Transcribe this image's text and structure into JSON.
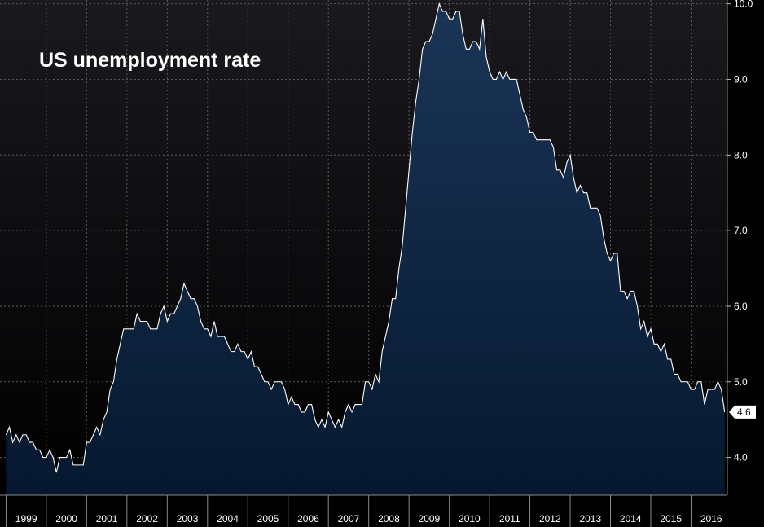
{
  "chart_data": {
    "type": "area",
    "title": "US unemployment rate",
    "xlabel": "",
    "ylabel": "",
    "x_range": [
      1998.85,
      2016.9
    ],
    "ylim": [
      3.5,
      10.05
    ],
    "y_ticks": [
      4.0,
      5.0,
      6.0,
      7.0,
      8.0,
      9.0,
      10.0
    ],
    "y_tick_labels": [
      "4.0",
      "5.0",
      "6.0",
      "7.0",
      "8.0",
      "9.0",
      "10.0"
    ],
    "x_tick_labels": [
      "1999",
      "2000",
      "2001",
      "2002",
      "2003",
      "2004",
      "2005",
      "2006",
      "2007",
      "2008",
      "2009",
      "2010",
      "2011",
      "2012",
      "2013",
      "2014",
      "2015",
      "2016"
    ],
    "grid": true,
    "last_value_label": "4.6",
    "colors": {
      "background_top": "#1a191e",
      "background_bottom": "#000000",
      "area_top": "#1b3557",
      "area_bottom": "#05182f",
      "line": "#ffffff",
      "grid": "#5a5a5a"
    },
    "series": [
      {
        "start_year": 1999,
        "start_month": 1,
        "frequency": "monthly",
        "values": [
          4.3,
          4.4,
          4.2,
          4.3,
          4.2,
          4.3,
          4.3,
          4.2,
          4.2,
          4.1,
          4.1,
          4.0,
          4.0,
          4.1,
          4.0,
          3.8,
          4.0,
          4.0,
          4.0,
          4.1,
          3.9,
          3.9,
          3.9,
          3.9,
          4.2,
          4.2,
          4.3,
          4.4,
          4.3,
          4.5,
          4.6,
          4.9,
          5.0,
          5.3,
          5.5,
          5.7,
          5.7,
          5.7,
          5.7,
          5.9,
          5.8,
          5.8,
          5.8,
          5.7,
          5.7,
          5.7,
          5.9,
          6.0,
          5.8,
          5.9,
          5.9,
          6.0,
          6.1,
          6.3,
          6.2,
          6.1,
          6.1,
          6.0,
          5.8,
          5.7,
          5.7,
          5.6,
          5.8,
          5.6,
          5.6,
          5.6,
          5.5,
          5.4,
          5.4,
          5.5,
          5.4,
          5.4,
          5.3,
          5.4,
          5.2,
          5.2,
          5.1,
          5.0,
          5.0,
          4.9,
          5.0,
          5.0,
          5.0,
          4.9,
          4.7,
          4.8,
          4.7,
          4.7,
          4.6,
          4.6,
          4.7,
          4.7,
          4.5,
          4.4,
          4.5,
          4.4,
          4.6,
          4.5,
          4.4,
          4.5,
          4.4,
          4.6,
          4.7,
          4.6,
          4.7,
          4.7,
          4.7,
          5.0,
          5.0,
          4.9,
          5.1,
          5.0,
          5.4,
          5.6,
          5.8,
          6.1,
          6.1,
          6.5,
          6.8,
          7.3,
          7.8,
          8.3,
          8.7,
          9.0,
          9.4,
          9.5,
          9.5,
          9.6,
          9.8,
          10.0,
          9.9,
          9.9,
          9.8,
          9.8,
          9.9,
          9.9,
          9.6,
          9.4,
          9.4,
          9.5,
          9.5,
          9.4,
          9.8,
          9.3,
          9.1,
          9.0,
          9.0,
          9.1,
          9.0,
          9.1,
          9.0,
          9.0,
          9.0,
          8.8,
          8.6,
          8.5,
          8.3,
          8.3,
          8.2,
          8.2,
          8.2,
          8.2,
          8.2,
          8.1,
          7.8,
          7.8,
          7.7,
          7.9,
          8.0,
          7.7,
          7.5,
          7.6,
          7.5,
          7.5,
          7.3,
          7.3,
          7.3,
          7.2,
          6.9,
          6.7,
          6.6,
          6.7,
          6.7,
          6.2,
          6.2,
          6.1,
          6.2,
          6.2,
          6.0,
          5.7,
          5.8,
          5.6,
          5.7,
          5.5,
          5.5,
          5.4,
          5.5,
          5.3,
          5.3,
          5.1,
          5.1,
          5.0,
          5.0,
          5.0,
          4.9,
          4.9,
          5.0,
          5.0,
          4.7,
          4.9,
          4.9,
          4.9,
          5.0,
          4.9,
          4.6
        ]
      }
    ]
  }
}
